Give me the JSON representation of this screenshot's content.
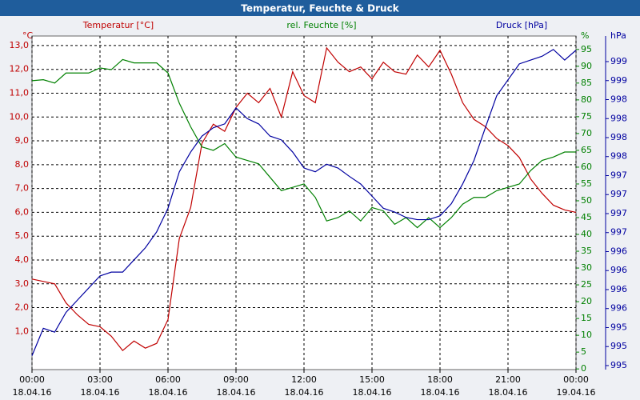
{
  "chart_data": {
    "type": "line",
    "title": "Temperatur, Feuchte & Druck",
    "y_title": "Temperatur [°C]",
    "y_unit": "°C",
    "y2_title": "rel. Feuchte [%]",
    "y2_unit": "%",
    "y3_title": "Druck [hPa]",
    "y3_unit": "hPa",
    "grid": true,
    "x": [
      0,
      0.5,
      1,
      1.5,
      2,
      2.5,
      3,
      3.5,
      4,
      4.5,
      5,
      5.5,
      6,
      6.5,
      7,
      7.5,
      8,
      8.5,
      9,
      9.5,
      10,
      10.5,
      11,
      11.5,
      12,
      12.5,
      13,
      13.5,
      14,
      14.5,
      15,
      15.5,
      16,
      16.5,
      17,
      17.5,
      18,
      18.5,
      19,
      19.5,
      20,
      20.5,
      21,
      21.5,
      22,
      22.5,
      23,
      23.5,
      24
    ],
    "xlim": [
      0,
      24
    ],
    "xticks": [
      {
        "value": 0,
        "label": "00:00",
        "date": "18.04.16"
      },
      {
        "value": 3,
        "label": "03:00",
        "date": "18.04.16"
      },
      {
        "value": 6,
        "label": "06:00",
        "date": "18.04.16"
      },
      {
        "value": 9,
        "label": "09:00",
        "date": "18.04.16"
      },
      {
        "value": 12,
        "label": "12:00",
        "date": "18.04.16"
      },
      {
        "value": 15,
        "label": "15:00",
        "date": "18.04.16"
      },
      {
        "value": 18,
        "label": "18:00",
        "date": "18.04.16"
      },
      {
        "value": 21,
        "label": "21:00",
        "date": "18.04.16"
      },
      {
        "value": 24,
        "label": "00:00",
        "date": "19.04.16"
      }
    ],
    "ylim": [
      -0.6,
      13.4
    ],
    "yticks": [
      {
        "value": 1,
        "label": "1,0"
      },
      {
        "value": 2,
        "label": "2,0"
      },
      {
        "value": 3,
        "label": "3,0"
      },
      {
        "value": 4,
        "label": "4,0"
      },
      {
        "value": 5,
        "label": "5,0"
      },
      {
        "value": 6,
        "label": "6,0"
      },
      {
        "value": 7,
        "label": "7,0"
      },
      {
        "value": 8,
        "label": "8,0"
      },
      {
        "value": 9,
        "label": "9,0"
      },
      {
        "value": 10,
        "label": "10,0"
      },
      {
        "value": 11,
        "label": "11,0"
      },
      {
        "value": 12,
        "label": "12,0"
      },
      {
        "value": 13,
        "label": "13,0"
      }
    ],
    "y2lim": [
      -0.2,
      99
    ],
    "y2ticks": [
      0,
      5,
      10,
      15,
      20,
      25,
      30,
      35,
      40,
      45,
      50,
      55,
      60,
      65,
      70,
      75,
      80,
      85,
      90,
      95
    ],
    "y3lim": [
      994.847,
      999.237
    ],
    "y3ticks": [
      {
        "value": 994.9,
        "label": "995"
      },
      {
        "value": 995.15,
        "label": "995"
      },
      {
        "value": 995.4,
        "label": "995"
      },
      {
        "value": 995.65,
        "label": "996"
      },
      {
        "value": 995.9,
        "label": "996"
      },
      {
        "value": 996.15,
        "label": "996"
      },
      {
        "value": 996.4,
        "label": "996"
      },
      {
        "value": 996.65,
        "label": "997"
      },
      {
        "value": 996.9,
        "label": "997"
      },
      {
        "value": 997.15,
        "label": "997"
      },
      {
        "value": 997.4,
        "label": "997"
      },
      {
        "value": 997.65,
        "label": "998"
      },
      {
        "value": 997.9,
        "label": "998"
      },
      {
        "value": 998.15,
        "label": "998"
      },
      {
        "value": 998.4,
        "label": "998"
      },
      {
        "value": 998.65,
        "label": "999"
      },
      {
        "value": 998.9,
        "label": "999"
      }
    ],
    "series": [
      {
        "name": "Temperatur [°C]",
        "color": "#c00000",
        "axis": "y",
        "values": [
          3.2,
          3.1,
          3.0,
          2.2,
          1.7,
          1.3,
          1.2,
          0.8,
          0.2,
          0.6,
          0.3,
          0.5,
          1.5,
          4.9,
          6.2,
          8.9,
          9.7,
          9.4,
          10.4,
          11.0,
          10.6,
          11.2,
          10.0,
          11.9,
          10.9,
          10.6,
          12.9,
          12.3,
          11.9,
          12.1,
          11.6,
          12.3,
          11.9,
          11.8,
          12.6,
          12.1,
          12.8,
          11.8,
          10.6,
          9.9,
          9.6,
          9.1,
          8.8,
          8.3,
          7.4,
          6.8,
          6.3,
          6.1,
          6.0
        ]
      },
      {
        "name": "rel. Feuchte [%]",
        "color": "#008000",
        "axis": "y2",
        "values": [
          85.7,
          86,
          85,
          88,
          88,
          88,
          89.5,
          89,
          92,
          91,
          91,
          91,
          88,
          79,
          72,
          66,
          65,
          67,
          63,
          62,
          61,
          57,
          53,
          54,
          55,
          51,
          44,
          45,
          47,
          44,
          48,
          47,
          43,
          45,
          42,
          45,
          42,
          45,
          49,
          51,
          51,
          53,
          54,
          55,
          59,
          62,
          63,
          64.5,
          64.5
        ]
      },
      {
        "name": "Druck [hPa]",
        "color": "#0000a0",
        "axis": "y3",
        "values": [
          995.03,
          995.39,
          995.34,
          995.6,
          995.76,
          995.92,
          996.08,
          996.13,
          996.13,
          996.29,
          996.45,
          996.66,
          996.97,
          997.45,
          997.71,
          997.92,
          998.03,
          998.08,
          998.29,
          998.15,
          998.08,
          997.92,
          997.87,
          997.71,
          997.5,
          997.45,
          997.55,
          997.5,
          997.39,
          997.29,
          997.13,
          996.97,
          996.92,
          996.85,
          996.82,
          996.82,
          996.87,
          997.03,
          997.29,
          997.6,
          998.03,
          998.45,
          998.66,
          998.87,
          998.92,
          998.97,
          999.06,
          998.92,
          999.05
        ]
      }
    ]
  }
}
